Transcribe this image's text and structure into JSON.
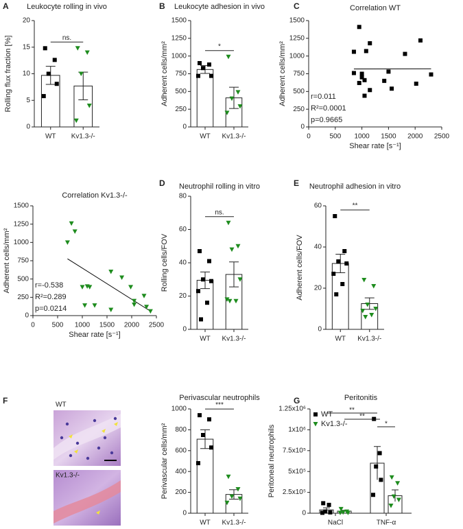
{
  "chart_data": [
    {
      "type": "bar",
      "panel": "A",
      "title": "Leukocyte rolling in vivo",
      "ylabel": "Rolling flux fraction [%]",
      "categories": [
        "WT",
        "Kv1.3-/-"
      ],
      "values": [
        9.7,
        7.7
      ],
      "errors": [
        1.7,
        2.6
      ],
      "points": [
        [
          14.8,
          12.6,
          10,
          8.1,
          5.8
        ],
        [
          14.8,
          14,
          10,
          4,
          1.2
        ]
      ],
      "colors": [
        "#000000",
        "#1e8c1e"
      ],
      "markers": [
        "square",
        "triangle"
      ],
      "ylim": [
        0,
        20
      ],
      "yticks": [
        0,
        5,
        10,
        15,
        20
      ],
      "significance": "ns."
    },
    {
      "type": "bar",
      "panel": "B",
      "title": "Leukocyte adhesion in vivo",
      "ylabel": "Adherent cells/mm²",
      "categories": [
        "WT",
        "Kv1.3-/-"
      ],
      "values": [
        810,
        410
      ],
      "errors": [
        55,
        150
      ],
      "points": [
        [
          900,
          880,
          830,
          720,
          720
        ],
        [
          990,
          490,
          400,
          290,
          200
        ]
      ],
      "colors": [
        "#000000",
        "#1e8c1e"
      ],
      "markers": [
        "square",
        "triangle"
      ],
      "ylim": [
        0,
        1500
      ],
      "yticks": [
        0,
        250,
        500,
        750,
        1000,
        1250,
        1500
      ],
      "significance": "*"
    },
    {
      "type": "scatter",
      "panel": "C",
      "title": "Correlation WT",
      "xlabel": "Shear rate [s⁻¹]",
      "ylabel": "Adherent cells/mm²",
      "x": [
        950,
        850,
        1080,
        1150,
        1810,
        2100,
        850,
        1000,
        1000,
        950,
        1050,
        1150,
        1050,
        1420,
        1500,
        1560,
        2020,
        2300
      ],
      "y": [
        1410,
        1060,
        1070,
        1180,
        1030,
        1220,
        760,
        750,
        700,
        620,
        660,
        520,
        440,
        650,
        780,
        540,
        610,
        740
      ],
      "color": "#000000",
      "marker": "square",
      "xlim": [
        0,
        2500
      ],
      "xticks": [
        0,
        500,
        1000,
        1500,
        2000,
        2500
      ],
      "ylim": [
        0,
        1500
      ],
      "yticks": [
        0,
        250,
        500,
        750,
        1000,
        1250,
        1500
      ],
      "stats": [
        "r=0.011",
        "R²=0.0001",
        "p=0.9665"
      ]
    },
    {
      "type": "scatter",
      "title": "Correlation Kv1.3-/-",
      "xlabel": "Shear rate [s⁻¹]",
      "ylabel": "Adherent cells/mm²",
      "x": [
        700,
        780,
        850,
        1000,
        1100,
        1150,
        1050,
        1250,
        1580,
        1580,
        1800,
        1980,
        2050,
        2050,
        2250,
        2300,
        2380
      ],
      "y": [
        1000,
        1260,
        1150,
        390,
        400,
        390,
        140,
        140,
        600,
        80,
        520,
        390,
        150,
        200,
        270,
        120,
        60
      ],
      "color": "#1e8c1e",
      "marker": "triangle",
      "xlim": [
        0,
        2500
      ],
      "xticks": [
        0,
        500,
        1000,
        1500,
        2000,
        2500
      ],
      "ylim": [
        0,
        1500
      ],
      "yticks": [
        0,
        250,
        500,
        750,
        1000,
        1250,
        1500
      ],
      "stats": [
        "r=-0.538",
        "R²=0.289",
        "p=0.0214"
      ]
    },
    {
      "type": "bar",
      "panel": "D",
      "title": "Neutrophil rolling in vitro",
      "ylabel": "Rolling cells/FOV",
      "categories": [
        "WT",
        "Kv1.3-/-"
      ],
      "values": [
        29.5,
        33
      ],
      "errors": [
        5,
        7.5
      ],
      "points": [
        [
          47,
          41,
          30,
          29,
          23,
          16,
          6
        ],
        [
          64,
          50,
          48,
          30,
          18,
          17,
          17
        ]
      ],
      "colors": [
        "#000000",
        "#1e8c1e"
      ],
      "markers": [
        "square",
        "triangle"
      ],
      "ylim": [
        0,
        80
      ],
      "yticks": [
        0,
        20,
        40,
        60,
        80
      ],
      "significance": "ns."
    },
    {
      "type": "bar",
      "panel": "E",
      "title": "Neutrophil adhesion in vitro",
      "ylabel": "Adherent cells/FOV",
      "categories": [
        "WT",
        "Kv1.3-/-"
      ],
      "values": [
        32,
        12.5
      ],
      "errors": [
        4.5,
        2.8
      ],
      "points": [
        [
          55,
          38,
          33,
          32,
          27,
          22,
          17
        ],
        [
          24,
          21,
          12,
          10,
          9,
          7,
          6
        ]
      ],
      "colors": [
        "#000000",
        "#1e8c1e"
      ],
      "markers": [
        "square",
        "triangle"
      ],
      "ylim": [
        0,
        60
      ],
      "yticks": [
        0,
        20,
        40,
        60
      ],
      "significance": "**"
    },
    {
      "type": "image",
      "panel": "F",
      "labels": [
        "WT",
        "Kv1.3-/-"
      ]
    },
    {
      "type": "bar",
      "title": "Perivascular neutrophils",
      "ylabel": "Perivascular cells/mm²",
      "categories": [
        "WT",
        "Kv1.3-/-"
      ],
      "values": [
        710,
        180
      ],
      "errors": [
        90,
        45
      ],
      "points": [
        [
          940,
          900,
          750,
          630,
          480
        ],
        [
          350,
          230,
          160,
          140,
          100
        ]
      ],
      "colors": [
        "#000000",
        "#1e8c1e"
      ],
      "markers": [
        "square",
        "triangle"
      ],
      "ylim": [
        0,
        1000
      ],
      "yticks": [
        0,
        200,
        400,
        600,
        800,
        1000
      ],
      "significance": "***"
    },
    {
      "type": "grouped_bar",
      "panel": "G",
      "title": "Peritonitis",
      "ylabel": "Peritoneal neutrophils",
      "categories": [
        "NaCl",
        "TNF-α"
      ],
      "series": [
        {
          "name": "WT",
          "color": "#000000",
          "marker": "square",
          "values": [
            40000,
            600000
          ],
          "errors": [
            25000,
            200000
          ],
          "points": [
            [
              120000,
              100000,
              20000,
              10000,
              5000
            ],
            [
              1130000,
              720000,
              560000,
              400000,
              220000
            ]
          ]
        },
        {
          "name": "Kv1.3-/-",
          "color": "#1e8c1e",
          "marker": "triangle",
          "values": [
            25000,
            210000
          ],
          "errors": [
            10000,
            70000
          ],
          "points": [
            [
              50000,
              20000,
              10000,
              5000,
              5000
            ],
            [
              430000,
              360000,
              200000,
              160000,
              90000
            ]
          ]
        }
      ],
      "ylim": [
        0,
        1250000
      ],
      "yticks": [
        0,
        {
          "value": 250000,
          "label": "2.5x10⁵"
        },
        {
          "value": 500000,
          "label": "5x10⁵"
        },
        {
          "value": 750000,
          "label": "7.5x10⁵"
        },
        {
          "value": 1000000,
          "label": "1x10⁶"
        },
        {
          "value": 1250000,
          "label": "1.25x10⁶"
        }
      ],
      "significance": [
        "**",
        "**",
        "*"
      ],
      "legend": "upper left"
    }
  ]
}
